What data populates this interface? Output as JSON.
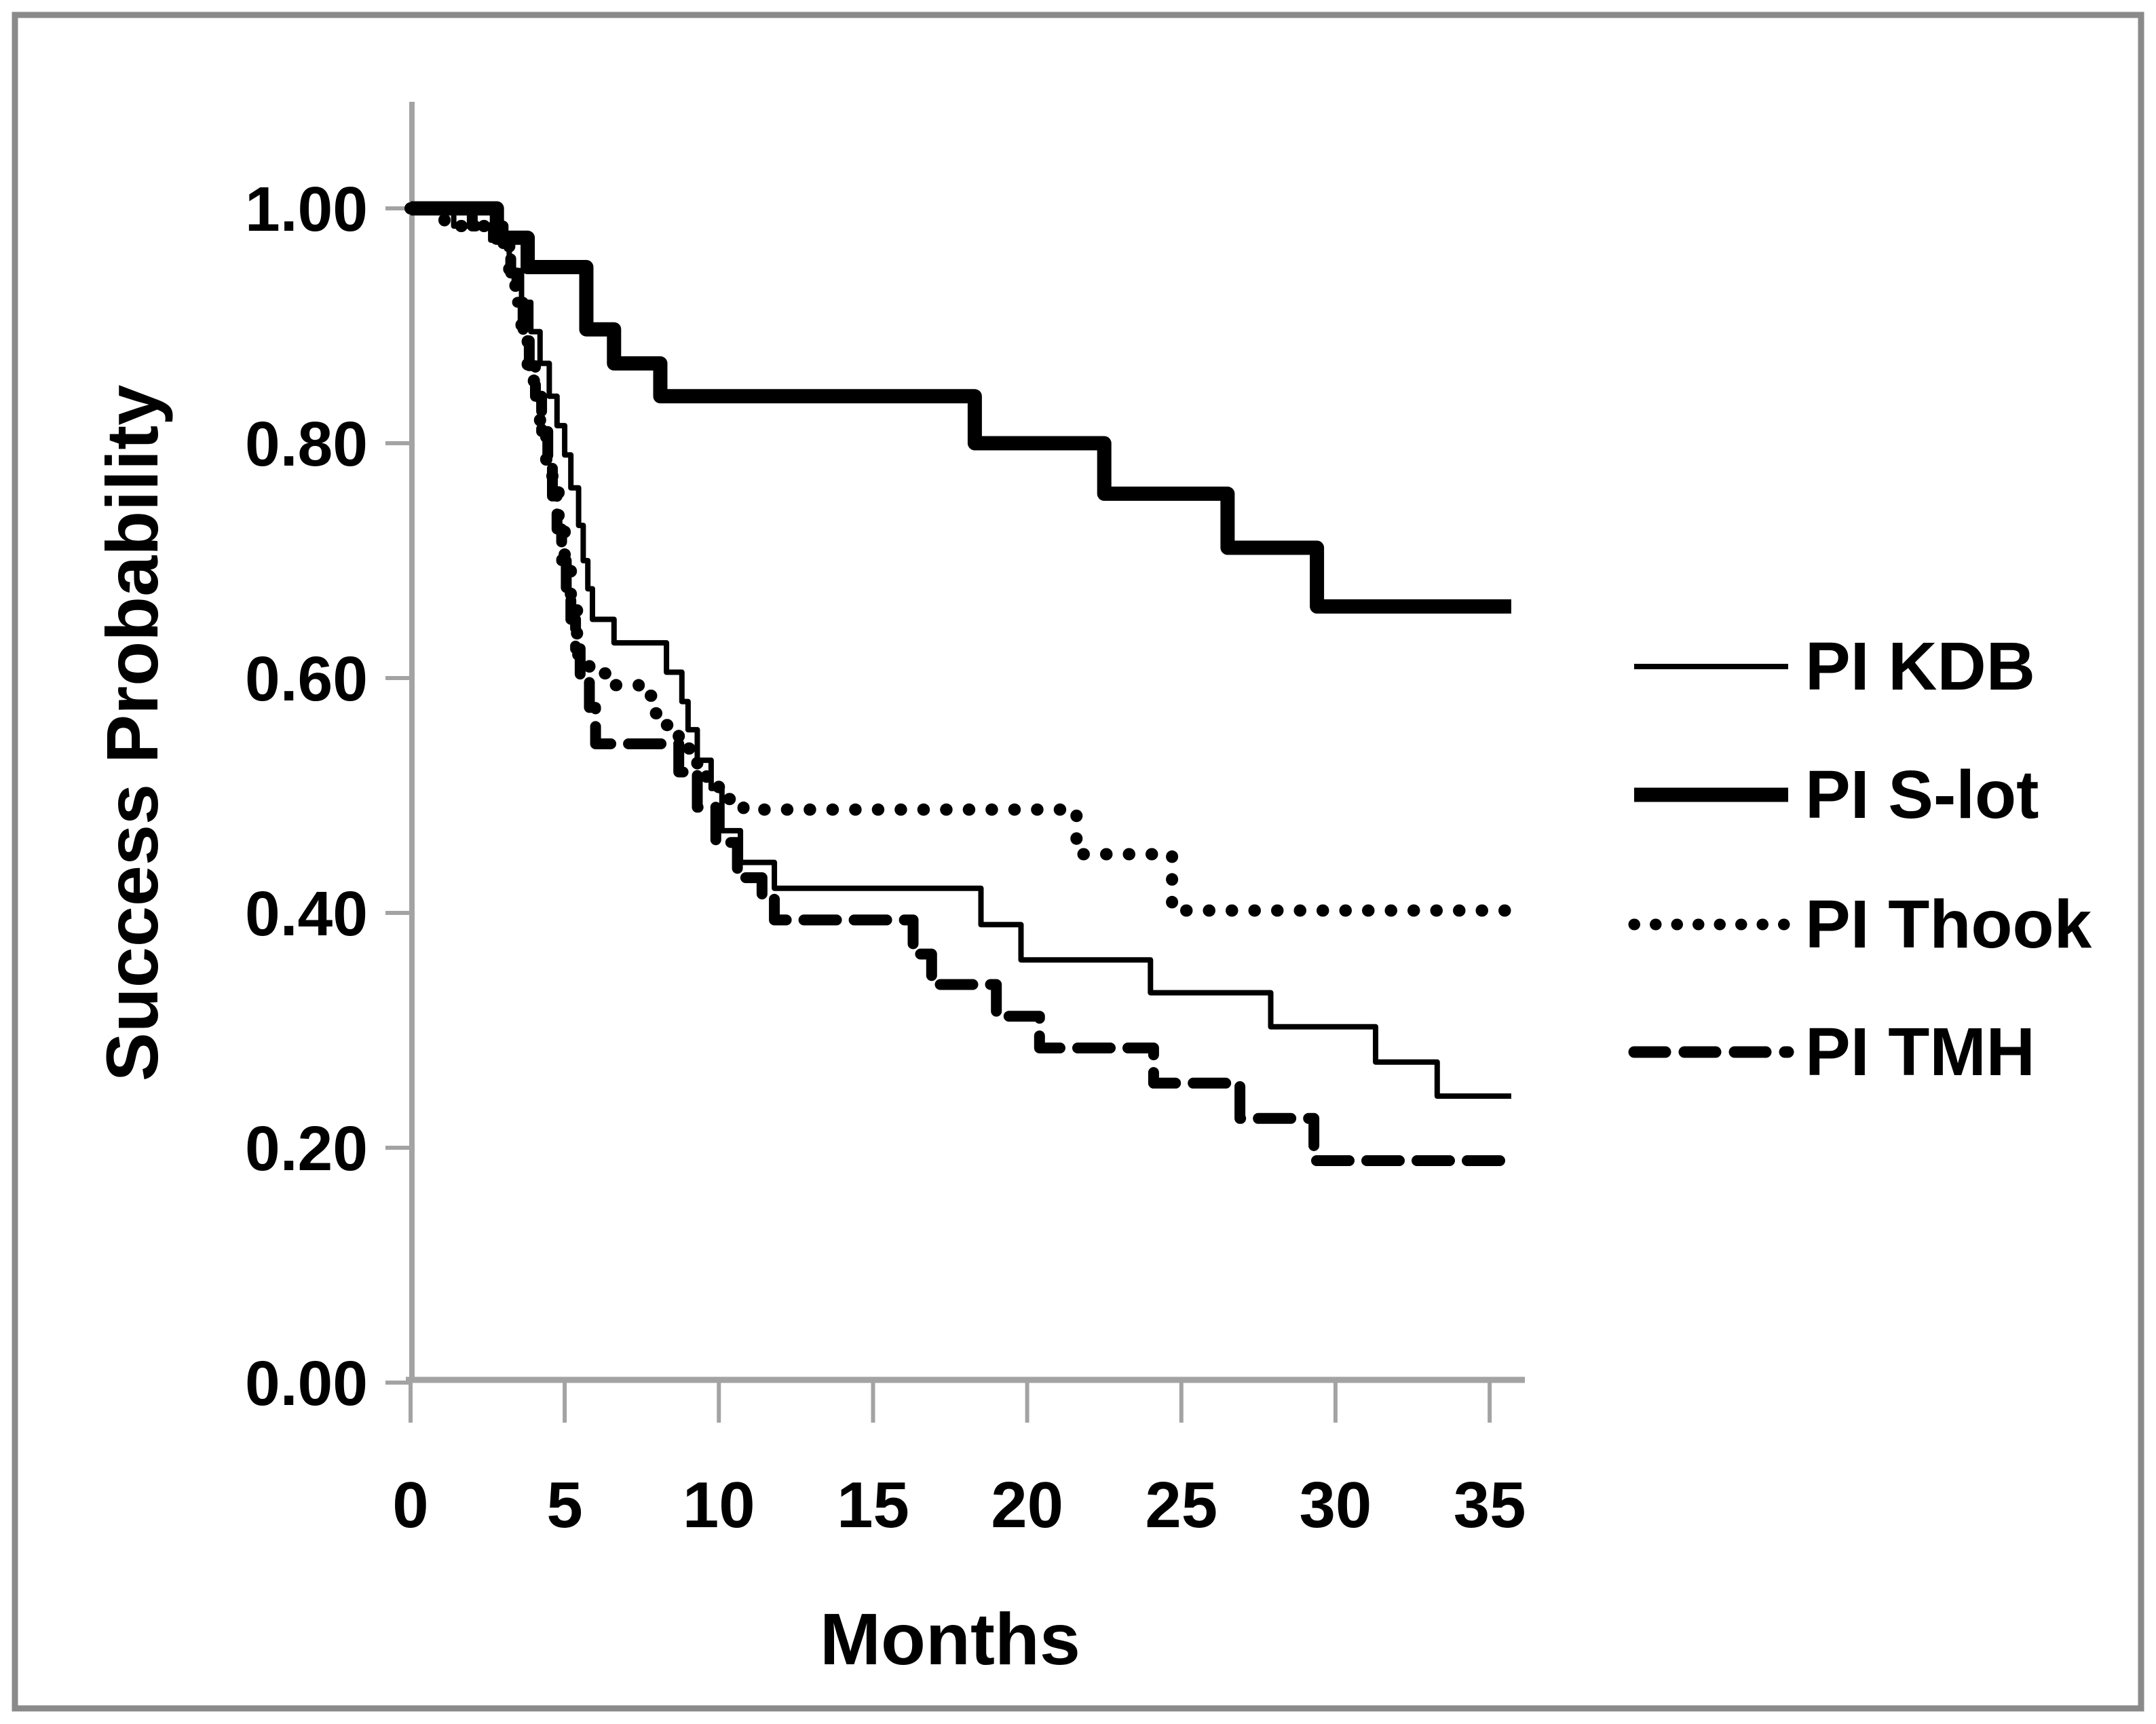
{
  "figure": {
    "background_color": "#ffffff",
    "border_color": "#8a8a8a",
    "axis_color": "#a3a3a3",
    "curve_color": "#000000",
    "text_color": "#000000"
  },
  "chart_data": {
    "type": "line",
    "subtype": "kaplan-meier-step",
    "title": "",
    "xlabel": "Months",
    "ylabel": "Success Probability",
    "xlim": [
      0,
      36
    ],
    "ylim": [
      0,
      1.0
    ],
    "x_end": 35.7,
    "grid": false,
    "legend_position": "right",
    "xticks": [
      {
        "value": 0,
        "label": "0"
      },
      {
        "value": 5,
        "label": "5"
      },
      {
        "value": 10,
        "label": "10"
      },
      {
        "value": 15,
        "label": "15"
      },
      {
        "value": 20,
        "label": "20"
      },
      {
        "value": 25,
        "label": "25"
      },
      {
        "value": 30,
        "label": "30"
      },
      {
        "value": 35,
        "label": "35"
      }
    ],
    "yticks": [
      {
        "value": 0.0,
        "label": "0.00"
      },
      {
        "value": 0.2,
        "label": "0.20"
      },
      {
        "value": 0.4,
        "label": "0.40"
      },
      {
        "value": 0.6,
        "label": "0.60"
      },
      {
        "value": 0.8,
        "label": "0.80"
      },
      {
        "value": 1.0,
        "label": "1.00"
      }
    ],
    "series": [
      {
        "name": "PI KDB",
        "style": "solid-thin",
        "points": [
          [
            0,
            1
          ],
          [
            1.4,
            0.985
          ],
          [
            2.6,
            0.973
          ],
          [
            3.2,
            0.947
          ],
          [
            3.6,
            0.92
          ],
          [
            3.9,
            0.895
          ],
          [
            4.2,
            0.868
          ],
          [
            4.5,
            0.84
          ],
          [
            4.75,
            0.815
          ],
          [
            5.0,
            0.79
          ],
          [
            5.2,
            0.762
          ],
          [
            5.45,
            0.73
          ],
          [
            5.6,
            0.7
          ],
          [
            5.75,
            0.676
          ],
          [
            5.9,
            0.65
          ],
          [
            6.6,
            0.63
          ],
          [
            8.3,
            0.605
          ],
          [
            8.8,
            0.58
          ],
          [
            9.0,
            0.556
          ],
          [
            9.3,
            0.53
          ],
          [
            9.75,
            0.506
          ],
          [
            10.1,
            0.47
          ],
          [
            10.7,
            0.443
          ],
          [
            11.8,
            0.421
          ],
          [
            18.5,
            0.39
          ],
          [
            19.8,
            0.36
          ],
          [
            24.0,
            0.332
          ],
          [
            27.9,
            0.303
          ],
          [
            31.3,
            0.273
          ],
          [
            33.3,
            0.244
          ]
        ]
      },
      {
        "name": "PI S-lot",
        "style": "solid-thick",
        "points": [
          [
            0,
            1
          ],
          [
            2.8,
            0.975
          ],
          [
            3.8,
            0.95
          ],
          [
            5.7,
            0.897
          ],
          [
            6.6,
            0.868
          ],
          [
            8.1,
            0.84
          ],
          [
            18.3,
            0.8
          ],
          [
            22.5,
            0.757
          ],
          [
            26.5,
            0.711
          ],
          [
            29.4,
            0.661
          ]
        ]
      },
      {
        "name": "PI Thook",
        "style": "dotted",
        "points": [
          [
            0,
            1
          ],
          [
            1.1,
            0.985
          ],
          [
            2.9,
            0.973
          ],
          [
            3.2,
            0.947
          ],
          [
            3.4,
            0.92
          ],
          [
            3.6,
            0.893
          ],
          [
            3.8,
            0.866
          ],
          [
            4.0,
            0.84
          ],
          [
            4.2,
            0.813
          ],
          [
            4.4,
            0.786
          ],
          [
            4.6,
            0.76
          ],
          [
            4.8,
            0.733
          ],
          [
            5.0,
            0.7
          ],
          [
            5.2,
            0.66
          ],
          [
            5.4,
            0.62
          ],
          [
            5.8,
            0.604
          ],
          [
            6.5,
            0.594
          ],
          [
            7.4,
            0.585
          ],
          [
            7.9,
            0.57
          ],
          [
            8.3,
            0.56
          ],
          [
            8.7,
            0.55
          ],
          [
            9.0,
            0.54
          ],
          [
            9.3,
            0.525
          ],
          [
            9.6,
            0.51
          ],
          [
            10.0,
            0.497
          ],
          [
            10.8,
            0.488
          ],
          [
            21.6,
            0.45
          ],
          [
            24.7,
            0.402
          ]
        ]
      },
      {
        "name": "PI TMH",
        "style": "dashed",
        "points": [
          [
            0,
            1
          ],
          [
            2.0,
            0.985
          ],
          [
            3.0,
            0.97
          ],
          [
            3.25,
            0.945
          ],
          [
            3.45,
            0.92
          ],
          [
            3.65,
            0.893
          ],
          [
            3.85,
            0.866
          ],
          [
            4.05,
            0.84
          ],
          [
            4.25,
            0.81
          ],
          [
            4.45,
            0.783
          ],
          [
            4.6,
            0.755
          ],
          [
            4.75,
            0.727
          ],
          [
            4.9,
            0.7
          ],
          [
            5.05,
            0.675
          ],
          [
            5.2,
            0.65
          ],
          [
            5.35,
            0.625
          ],
          [
            5.5,
            0.6
          ],
          [
            5.8,
            0.575
          ],
          [
            6.0,
            0.544
          ],
          [
            8.7,
            0.52
          ],
          [
            9.3,
            0.49
          ],
          [
            9.9,
            0.46
          ],
          [
            10.6,
            0.43
          ],
          [
            11.4,
            0.415
          ],
          [
            11.8,
            0.394
          ],
          [
            16.3,
            0.365
          ],
          [
            16.9,
            0.339
          ],
          [
            19.0,
            0.312
          ],
          [
            20.4,
            0.285
          ],
          [
            24.1,
            0.255
          ],
          [
            26.9,
            0.225
          ],
          [
            29.3,
            0.189
          ]
        ]
      }
    ]
  },
  "legend": {
    "items": [
      {
        "label": "PI KDB",
        "style": "solid-thin"
      },
      {
        "label": "PI S-lot",
        "style": "solid-thick"
      },
      {
        "label": "PI Thook",
        "style": "dotted"
      },
      {
        "label": "PI TMH",
        "style": "dashed"
      }
    ]
  }
}
